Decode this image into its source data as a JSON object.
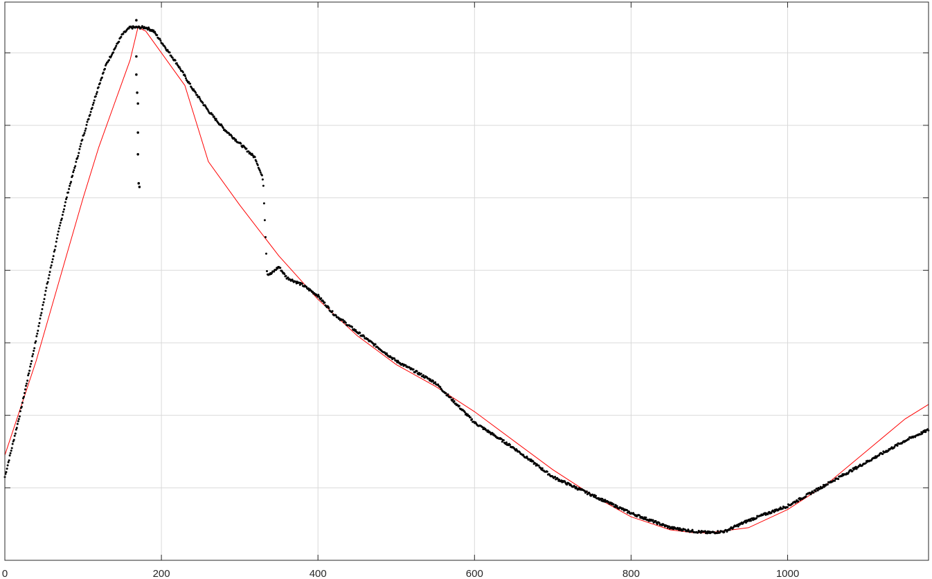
{
  "chart_data": {
    "type": "scatter",
    "title": "",
    "xlabel": "",
    "ylabel": "",
    "xlim": [
      0,
      1180
    ],
    "ylim": [
      0,
      7.7
    ],
    "grid": true,
    "x_ticks": [
      0,
      200,
      400,
      600,
      800,
      1000
    ],
    "x_tick_labels": [
      "0",
      "200",
      "400",
      "600",
      "800",
      "1000"
    ],
    "y_ticks": [
      1,
      2,
      3,
      4,
      5,
      6,
      7
    ],
    "y_tick_labels_shown": false,
    "colors": {
      "data": "#000000",
      "fit": "#ff0000",
      "grid": "#d9d9d9",
      "axes": "#262626"
    },
    "series": [
      {
        "role": "measured data (dots)",
        "marker": "dot",
        "color": "#000000",
        "x": [
          0,
          10,
          20,
          30,
          40,
          50,
          60,
          70,
          80,
          90,
          100,
          110,
          120,
          130,
          140,
          150,
          160,
          165,
          175,
          180,
          190,
          200,
          220,
          240,
          260,
          280,
          300,
          310,
          320,
          330,
          335,
          340,
          350,
          360,
          380,
          400,
          420,
          450,
          500,
          550,
          600,
          650,
          700,
          750,
          800,
          850,
          880,
          900,
          920,
          950,
          1000,
          1050,
          1100,
          1150,
          1180
        ],
        "y": [
          1.15,
          1.6,
          2.05,
          2.55,
          3.05,
          3.6,
          4.1,
          4.6,
          5.05,
          5.45,
          5.85,
          6.2,
          6.55,
          6.85,
          7.05,
          7.25,
          7.35,
          7.35,
          7.35,
          7.35,
          7.3,
          7.15,
          6.85,
          6.5,
          6.2,
          5.95,
          5.75,
          5.65,
          5.55,
          5.25,
          3.95,
          3.95,
          4.05,
          3.9,
          3.8,
          3.65,
          3.4,
          3.15,
          2.75,
          2.45,
          1.9,
          1.55,
          1.15,
          0.9,
          0.65,
          0.45,
          0.4,
          0.38,
          0.4,
          0.55,
          0.75,
          1.05,
          1.35,
          1.65,
          1.8
        ]
      },
      {
        "role": "outliers near peak",
        "marker": "dot",
        "color": "#000000",
        "x": [
          168,
          168,
          168,
          169,
          170,
          170,
          170,
          171,
          172
        ],
        "y": [
          7.45,
          6.95,
          6.7,
          6.45,
          6.3,
          5.9,
          5.6,
          5.2,
          5.15
        ]
      },
      {
        "role": "fitted curve",
        "marker": "line",
        "color": "#ff0000",
        "x": [
          0,
          20,
          40,
          60,
          80,
          100,
          120,
          140,
          160,
          170,
          180,
          200,
          230,
          260,
          300,
          350,
          400,
          450,
          500,
          550,
          600,
          650,
          700,
          750,
          800,
          850,
          880,
          900,
          950,
          1000,
          1050,
          1100,
          1150,
          1180
        ],
        "y": [
          1.45,
          2.1,
          2.75,
          3.5,
          4.25,
          5.0,
          5.7,
          6.3,
          6.9,
          7.35,
          7.3,
          7.0,
          6.55,
          5.5,
          4.9,
          4.2,
          3.6,
          3.1,
          2.7,
          2.4,
          2.05,
          1.65,
          1.25,
          0.9,
          0.6,
          0.42,
          0.38,
          0.38,
          0.45,
          0.7,
          1.05,
          1.5,
          1.95,
          2.15
        ]
      }
    ]
  }
}
